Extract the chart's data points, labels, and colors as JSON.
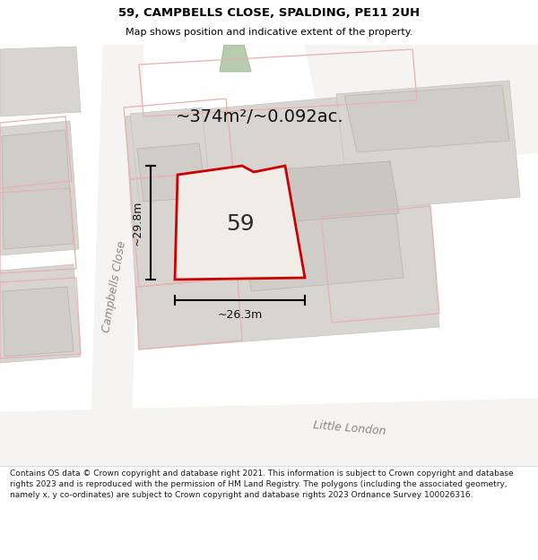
{
  "title": "59, CAMPBELLS CLOSE, SPALDING, PE11 2UH",
  "subtitle": "Map shows position and indicative extent of the property.",
  "area_label": "~374m²/~0.092ac.",
  "number_label": "59",
  "width_label": "~26.3m",
  "height_label": "~29.8m",
  "footer_text": "Contains OS data © Crown copyright and database right 2021. This information is subject to Crown copyright and database rights 2023 and is reproduced with the permission of HM Land Registry. The polygons (including the associated geometry, namely x, y co-ordinates) are subject to Crown copyright and database rights 2023 Ordnance Survey 100026316.",
  "bg_color": "#eeece9",
  "block_dark": "#d0cdc8",
  "block_mid": "#d8d5d0",
  "block_light": "#e0ddd8",
  "road_white": "#f5f4f2",
  "red_outline": "#cc0000",
  "property_fill": "#f0ede8",
  "green_area": "#b8ccb0",
  "light_red": "#e8b0b0",
  "campbells_close_label": "Campbells Close",
  "little_london_label": "Little London"
}
